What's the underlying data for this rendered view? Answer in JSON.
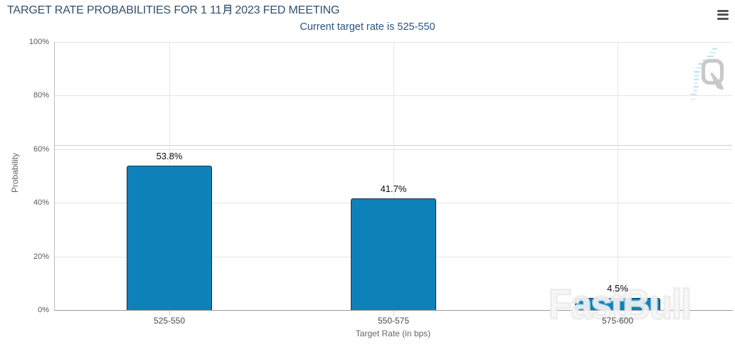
{
  "header": {
    "title_part1": "TARGET RATE PROBABILITIES FOR 1 11",
    "title_month_char": "月",
    "title_part2": "2023 FED MEETING",
    "subtitle": "Current target rate is 525-550",
    "menu_icon": "hamburger-icon"
  },
  "watermarks": {
    "brand": "FastBull",
    "logo_letter": "Q"
  },
  "chart_data": {
    "type": "bar",
    "title": "TARGET RATE PROBABILITIES FOR 1 11月 2023 FED MEETING",
    "subtitle": "Current target rate is 525-550",
    "categories": [
      "525-550",
      "550-575",
      "575-600"
    ],
    "values": [
      53.8,
      41.7,
      4.5
    ],
    "value_labels": [
      "53.8%",
      "41.7%",
      "4.5%"
    ],
    "xlabel": "Target Rate (in bps)",
    "ylabel": "Probability",
    "ylim": [
      0,
      100
    ],
    "ytick_interval": 20,
    "ytick_labels": [
      "0%",
      "20%",
      "40%",
      "60%",
      "80%",
      "100%"
    ],
    "grid": true,
    "legend": false,
    "plotline_y": 61.5,
    "colors": {
      "bar_fill": "#0e81b9",
      "bar_border": "#16354d",
      "title": "#31506b",
      "subtitle": "#2b547e",
      "gridline": "#e4e4e4",
      "axis_line": "#9b9b9b"
    }
  }
}
